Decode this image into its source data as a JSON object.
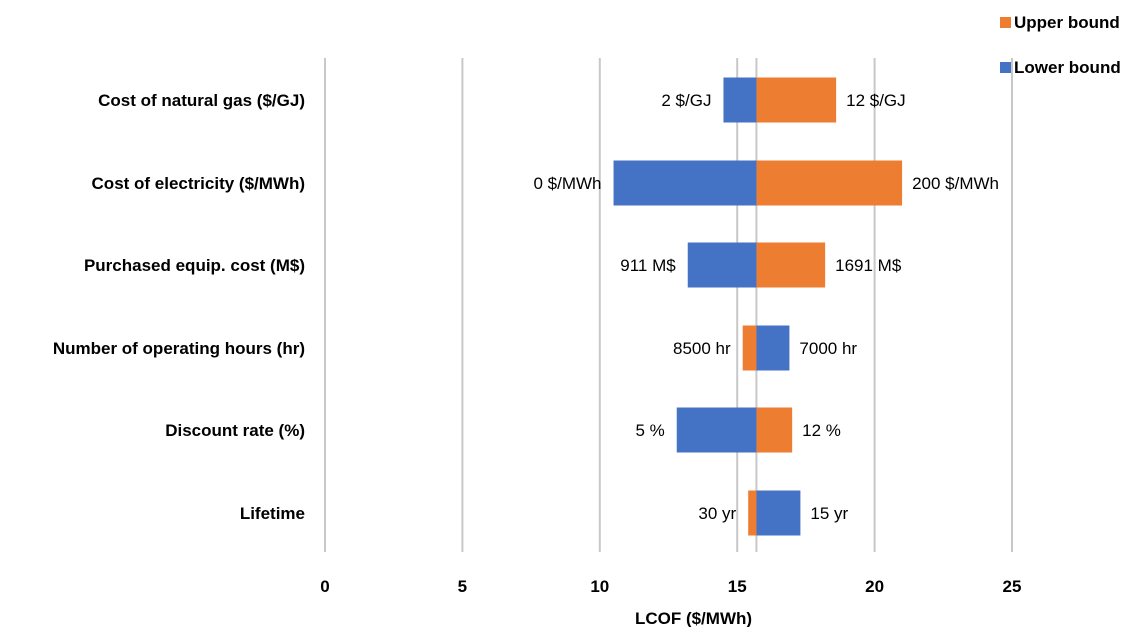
{
  "chart_data": {
    "type": "bar",
    "orientation": "horizontal",
    "style": "tornado",
    "baseline": 15.7,
    "categories": [
      "Cost of natural gas ($/GJ)",
      "Cost of electricity ($/MWh)",
      "Purchased equip. cost (M$)",
      "Number of operating hours (hr)",
      "Discount rate (%)",
      "Lifetime"
    ],
    "series": [
      {
        "name": "Upper bound",
        "color": "#ED7D31",
        "values": [
          18.6,
          21.0,
          18.2,
          15.2,
          17.0,
          15.4
        ],
        "labels": [
          "12 $/GJ",
          "200 $/MWh",
          "1691 M$",
          "8500 hr",
          "12 %",
          "30 yr"
        ]
      },
      {
        "name": "Lower bound",
        "color": "#4472C4",
        "values": [
          14.5,
          10.5,
          13.2,
          16.9,
          12.8,
          17.3
        ],
        "labels": [
          "2 $/GJ",
          "0 $/MWh",
          "911 M$",
          "7000 hr",
          "5 %",
          "15 yr"
        ]
      }
    ],
    "xlabel": "LCOF ($/MWh)",
    "ylabel": "",
    "xlim": [
      0,
      25
    ],
    "xticks": [
      "0",
      "5",
      "10",
      "15",
      "20",
      "25"
    ],
    "grid": "vertical",
    "legend": "top-right"
  }
}
